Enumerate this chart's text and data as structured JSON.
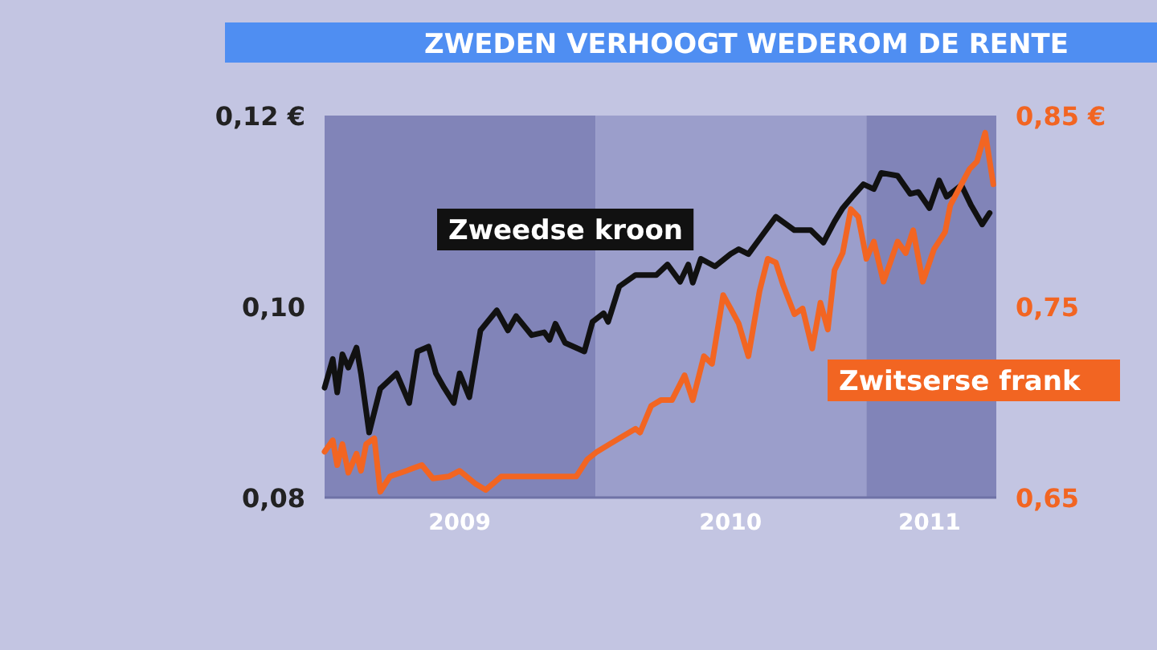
{
  "chart_data": {
    "type": "line",
    "title": "ZWEDEN VERHOOGT WEDEROM DE RENTE",
    "xlim": [
      "2009-01-01",
      "2011-06-25"
    ],
    "xticks": [
      {
        "value": "2009-07-02",
        "label": "2009"
      },
      {
        "value": "2010-07-02",
        "label": "2010"
      },
      {
        "value": "2011-03-27",
        "label": "2011"
      }
    ],
    "ylim": [
      0.08,
      0.12
    ],
    "yticks": [
      {
        "value": 0.08,
        "label": "0,08"
      },
      {
        "value": 0.1,
        "label": "0,10"
      },
      {
        "value": 0.12,
        "label": "0,12 €"
      }
    ],
    "y2lim": [
      0.65,
      0.85
    ],
    "y2ticks": [
      {
        "value": 0.65,
        "label": "0,65"
      },
      {
        "value": 0.75,
        "label": "0,75"
      },
      {
        "value": 0.85,
        "label": "0,85 €"
      }
    ],
    "bands": [
      {
        "axis": "x",
        "from": "2009-01-01",
        "to": "2010-01-01",
        "color": "#8184b8"
      },
      {
        "axis": "x",
        "from": "2010-01-01",
        "to": "2011-01-01",
        "color": "#9b9ecb"
      },
      {
        "axis": "x",
        "from": "2011-01-01",
        "to": "2011-06-25",
        "color": "#8184b8"
      }
    ],
    "legend": false,
    "grid": false,
    "series": [
      {
        "name": "Zweedse kroon",
        "color": "#111111",
        "axis": "y",
        "x": [
          "2009-01-01",
          "2009-01-12",
          "2009-01-18",
          "2009-01-25",
          "2009-02-02",
          "2009-02-13",
          "2009-02-19",
          "2009-03-02",
          "2009-03-17",
          "2009-04-08",
          "2009-04-25",
          "2009-05-06",
          "2009-05-21",
          "2009-05-31",
          "2009-06-11",
          "2009-06-24",
          "2009-07-02",
          "2009-07-15",
          "2009-07-30",
          "2009-08-21",
          "2009-09-05",
          "2009-09-16",
          "2009-10-07",
          "2009-10-24",
          "2009-10-31",
          "2009-11-08",
          "2009-11-21",
          "2009-12-17",
          "2009-12-28",
          "2010-01-12",
          "2010-01-18",
          "2010-02-02",
          "2010-02-24",
          "2010-03-24",
          "2010-04-08",
          "2010-04-25",
          "2010-05-06",
          "2010-05-12",
          "2010-05-23",
          "2010-06-11",
          "2010-07-02",
          "2010-07-13",
          "2010-07-26",
          "2010-08-14",
          "2010-09-01",
          "2010-09-26",
          "2010-10-18",
          "2010-11-04",
          "2010-11-19",
          "2010-11-30",
          "2010-12-13",
          "2010-12-28",
          "2011-01-11",
          "2011-01-21",
          "2011-02-12",
          "2011-03-01",
          "2011-03-12",
          "2011-03-27",
          "2011-04-09",
          "2011-04-19",
          "2011-05-09",
          "2011-05-22",
          "2011-06-06",
          "2011-06-16"
        ],
        "values": [
          0.0915,
          0.0945,
          0.091,
          0.095,
          0.0936,
          0.0957,
          0.093,
          0.0868,
          0.0914,
          0.093,
          0.0899,
          0.0953,
          0.0958,
          0.093,
          0.0915,
          0.0899,
          0.093,
          0.0905,
          0.0975,
          0.0996,
          0.0975,
          0.099,
          0.097,
          0.0973,
          0.0965,
          0.0982,
          0.0962,
          0.0953,
          0.0984,
          0.0993,
          0.0984,
          0.1021,
          0.1033,
          0.1033,
          0.1044,
          0.1026,
          0.1044,
          0.1025,
          0.105,
          0.1042,
          0.1055,
          0.106,
          0.1055,
          0.1075,
          0.1094,
          0.108,
          0.108,
          0.1067,
          0.1089,
          0.1103,
          0.1115,
          0.1128,
          0.1123,
          0.114,
          0.1137,
          0.1118,
          0.112,
          0.1103,
          0.1132,
          0.1115,
          0.1127,
          0.1106,
          0.1086,
          0.1098
        ]
      },
      {
        "name": "Zwitserse frank",
        "color": "#f26522",
        "axis": "y2",
        "x": [
          "2009-01-01",
          "2009-01-12",
          "2009-01-18",
          "2009-01-25",
          "2009-02-02",
          "2009-02-13",
          "2009-02-19",
          "2009-02-26",
          "2009-03-09",
          "2009-03-17",
          "2009-03-30",
          "2009-04-21",
          "2009-05-12",
          "2009-05-27",
          "2009-06-17",
          "2009-07-02",
          "2009-07-24",
          "2009-08-06",
          "2009-08-27",
          "2009-10-24",
          "2009-12-06",
          "2009-12-21",
          "2010-01-03",
          "2010-02-02",
          "2010-02-24",
          "2010-03-02",
          "2010-03-17",
          "2010-03-30",
          "2010-04-14",
          "2010-05-01",
          "2010-05-12",
          "2010-05-27",
          "2010-06-07",
          "2010-06-22",
          "2010-07-02",
          "2010-07-13",
          "2010-07-26",
          "2010-08-10",
          "2010-08-21",
          "2010-09-01",
          "2010-09-11",
          "2010-09-26",
          "2010-10-07",
          "2010-10-20",
          "2010-10-31",
          "2010-11-10",
          "2010-11-19",
          "2010-11-30",
          "2010-12-11",
          "2010-12-21",
          "2011-01-01",
          "2011-01-11",
          "2011-01-24",
          "2011-02-12",
          "2011-02-23",
          "2011-03-05",
          "2011-03-18",
          "2011-04-02",
          "2011-04-17",
          "2011-04-24",
          "2011-05-09",
          "2011-05-20",
          "2011-05-30",
          "2011-06-10",
          "2011-06-21"
        ],
        "values": [
          0.674,
          0.68,
          0.667,
          0.678,
          0.663,
          0.673,
          0.664,
          0.678,
          0.681,
          0.653,
          0.661,
          0.664,
          0.667,
          0.66,
          0.661,
          0.664,
          0.657,
          0.654,
          0.661,
          0.661,
          0.661,
          0.67,
          0.674,
          0.681,
          0.686,
          0.684,
          0.698,
          0.701,
          0.701,
          0.714,
          0.701,
          0.724,
          0.72,
          0.756,
          0.749,
          0.741,
          0.724,
          0.758,
          0.775,
          0.773,
          0.761,
          0.746,
          0.749,
          0.728,
          0.752,
          0.738,
          0.769,
          0.778,
          0.801,
          0.797,
          0.775,
          0.784,
          0.763,
          0.784,
          0.778,
          0.79,
          0.763,
          0.78,
          0.789,
          0.803,
          0.814,
          0.822,
          0.826,
          0.841,
          0.814
        ]
      }
    ]
  }
}
